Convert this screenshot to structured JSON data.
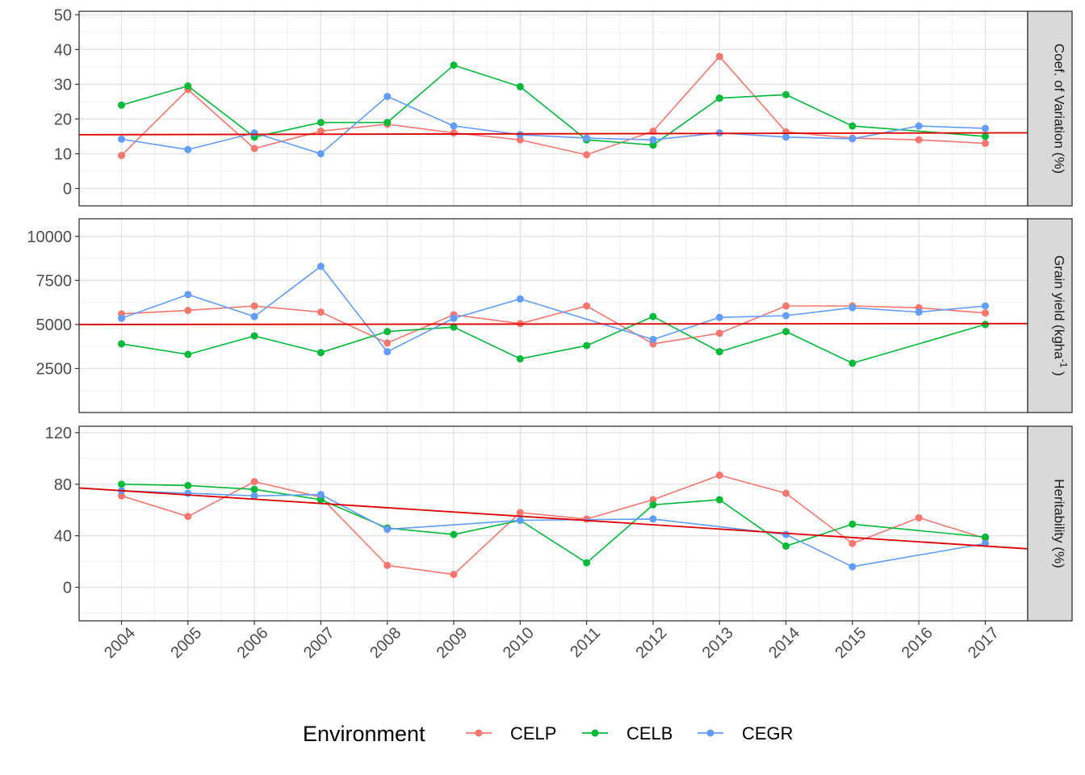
{
  "chart_data": {
    "type": "line",
    "x": [
      "2004",
      "2005",
      "2006",
      "2007",
      "2008",
      "2009",
      "2010",
      "2011",
      "2012",
      "2013",
      "2014",
      "2015",
      "2016",
      "2017"
    ],
    "legend": {
      "title": "Environment",
      "position": "bottom",
      "entries": [
        {
          "name": "CELP",
          "color": "#F8766D"
        },
        {
          "name": "CELB",
          "color": "#00BA38"
        },
        {
          "name": "CEGR",
          "color": "#619CFF"
        }
      ]
    },
    "panels": [
      {
        "strip_label": "Coef. of Variation (%)",
        "ylim": [
          -5,
          51
        ],
        "yticks": [
          "0",
          "10",
          "20",
          "30",
          "40",
          "50"
        ],
        "trend_line": {
          "color": "#E00000",
          "y_start": 15.5,
          "y_end": 16.0
        },
        "series": [
          {
            "name": "CELP",
            "values": [
              9.5,
              28.5,
              11.5,
              16.5,
              18.5,
              16.0,
              14.0,
              9.7,
              16.5,
              38.0,
              16.3,
              14.5,
              14.0,
              13.0
            ]
          },
          {
            "name": "CELB",
            "values": [
              24.0,
              29.5,
              14.8,
              19.0,
              19.0,
              35.5,
              29.3,
              14.0,
              12.5,
              26.0,
              27.0,
              18.0,
              null,
              15.0
            ]
          },
          {
            "name": "CEGR",
            "values": [
              14.2,
              11.2,
              16.0,
              10.0,
              26.5,
              18.0,
              15.5,
              14.5,
              14.0,
              16.0,
              14.8,
              14.3,
              18.0,
              17.3
            ]
          }
        ]
      },
      {
        "strip_label": "Grain yield (kgha",
        "strip_label_sup": "-1",
        "strip_label_end": " )",
        "ylim": [
          0,
          11000
        ],
        "yticks": [
          "2500",
          "5000",
          "7500",
          "10000"
        ],
        "trend_line": {
          "color": "#E00000",
          "y_start": 5000,
          "y_end": 5050
        },
        "series": [
          {
            "name": "CELP",
            "values": [
              5600,
              5800,
              6050,
              5700,
              3950,
              5550,
              5050,
              6050,
              3900,
              4500,
              6050,
              6050,
              5950,
              5650
            ]
          },
          {
            "name": "CELB",
            "values": [
              3900,
              3300,
              4350,
              3400,
              4600,
              4850,
              3050,
              3800,
              5450,
              3450,
              4600,
              2800,
              null,
              5000
            ]
          },
          {
            "name": "CEGR",
            "values": [
              5350,
              6700,
              5450,
              8300,
              3450,
              5350,
              6450,
              null,
              4150,
              5400,
              5500,
              5950,
              5700,
              6050
            ]
          }
        ]
      },
      {
        "strip_label": "Heritability (%)",
        "ylim": [
          -26,
          125
        ],
        "yticks": [
          "0",
          "40",
          "80",
          "120"
        ],
        "trend_line": {
          "color": "#E00000",
          "y_start": 75,
          "y_end": 32
        },
        "series": [
          {
            "name": "CELP",
            "values": [
              71,
              55,
              82,
              70,
              17,
              10,
              58,
              53,
              68,
              87,
              73,
              34,
              54,
              38
            ]
          },
          {
            "name": "CELB",
            "values": [
              80,
              79,
              76,
              68,
              46,
              41,
              52,
              19,
              64,
              68,
              32,
              49,
              null,
              39
            ]
          },
          {
            "name": "CEGR",
            "values": [
              75,
              73,
              71,
              72,
              45,
              null,
              52,
              null,
              53,
              null,
              41,
              16,
              null,
              34
            ]
          }
        ]
      }
    ]
  }
}
